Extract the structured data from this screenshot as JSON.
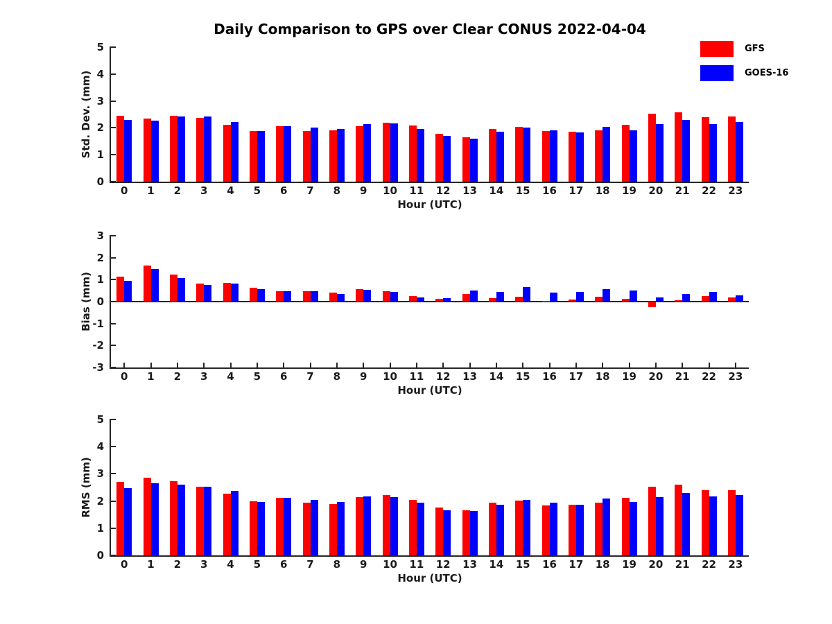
{
  "title": "Daily Comparison to GPS over Clear CONUS 2022-04-04",
  "legend": {
    "items": [
      {
        "label": "GFS",
        "color": "#ff0000"
      },
      {
        "label": "GOES-16",
        "color": "#0000ff"
      }
    ]
  },
  "chart_data": [
    {
      "type": "bar",
      "ylabel": "Std. Dev. (mm)",
      "xlabel": "Hour (UTC)",
      "ylim": [
        0,
        5
      ],
      "yticks": [
        0,
        1,
        2,
        3,
        4,
        5
      ],
      "grid": false,
      "legend_position": "top-right",
      "categories": [
        0,
        1,
        2,
        3,
        4,
        5,
        6,
        7,
        8,
        9,
        10,
        11,
        12,
        13,
        14,
        15,
        16,
        17,
        18,
        19,
        20,
        21,
        22,
        23
      ],
      "series": [
        {
          "name": "GFS",
          "color": "#ff0000",
          "values": [
            2.45,
            2.35,
            2.45,
            2.38,
            2.12,
            1.88,
            2.07,
            1.88,
            1.9,
            2.07,
            2.2,
            2.1,
            1.79,
            1.65,
            1.96,
            2.03,
            1.87,
            1.86,
            1.92,
            2.11,
            2.52,
            2.58,
            2.4,
            2.41
          ]
        },
        {
          "name": "GOES-16",
          "color": "#0000ff",
          "values": [
            2.3,
            2.27,
            2.41,
            2.42,
            2.22,
            1.87,
            2.07,
            2.0,
            1.95,
            2.13,
            2.17,
            1.97,
            1.7,
            1.6,
            1.86,
            2.01,
            1.91,
            1.82,
            2.03,
            1.91,
            2.14,
            2.29,
            2.13,
            2.21
          ]
        }
      ]
    },
    {
      "type": "bar",
      "ylabel": "Bias (mm)",
      "xlabel": "Hour (UTC)",
      "ylim": [
        -3,
        3
      ],
      "yticks": [
        -3,
        -2,
        -1,
        0,
        1,
        2,
        3
      ],
      "grid": false,
      "categories": [
        0,
        1,
        2,
        3,
        4,
        5,
        6,
        7,
        8,
        9,
        10,
        11,
        12,
        13,
        14,
        15,
        16,
        17,
        18,
        19,
        20,
        21,
        22,
        23
      ],
      "series": [
        {
          "name": "GFS",
          "color": "#ff0000",
          "values": [
            1.13,
            1.65,
            1.22,
            0.83,
            0.85,
            0.62,
            0.47,
            0.47,
            0.42,
            0.57,
            0.48,
            0.26,
            0.13,
            0.34,
            0.16,
            0.22,
            0.04,
            0.08,
            0.22,
            0.13,
            -0.24,
            0.06,
            0.25,
            0.18
          ]
        },
        {
          "name": "GOES-16",
          "color": "#0000ff",
          "values": [
            0.96,
            1.48,
            1.07,
            0.75,
            0.83,
            0.57,
            0.46,
            0.46,
            0.35,
            0.53,
            0.43,
            0.2,
            0.17,
            0.52,
            0.45,
            0.65,
            0.42,
            0.43,
            0.58,
            0.49,
            0.18,
            0.35,
            0.43,
            0.28
          ]
        }
      ]
    },
    {
      "type": "bar",
      "ylabel": "RMS (mm)",
      "xlabel": "Hour (UTC)",
      "ylim": [
        0,
        5
      ],
      "yticks": [
        0,
        1,
        2,
        3,
        4,
        5
      ],
      "grid": false,
      "categories": [
        0,
        1,
        2,
        3,
        4,
        5,
        6,
        7,
        8,
        9,
        10,
        11,
        12,
        13,
        14,
        15,
        16,
        17,
        18,
        19,
        20,
        21,
        22,
        23
      ],
      "series": [
        {
          "name": "GFS",
          "color": "#ff0000",
          "values": [
            2.7,
            2.85,
            2.74,
            2.53,
            2.28,
            2.0,
            2.12,
            1.95,
            1.9,
            2.14,
            2.22,
            2.05,
            1.77,
            1.67,
            1.94,
            2.01,
            1.83,
            1.85,
            1.95,
            2.12,
            2.53,
            2.6,
            2.4,
            2.41
          ]
        },
        {
          "name": "GOES-16",
          "color": "#0000ff",
          "values": [
            2.48,
            2.66,
            2.61,
            2.53,
            2.38,
            1.97,
            2.12,
            2.04,
            1.96,
            2.16,
            2.15,
            1.94,
            1.67,
            1.64,
            1.87,
            2.05,
            1.93,
            1.87,
            2.1,
            1.97,
            2.15,
            2.3,
            2.16,
            2.22
          ]
        }
      ]
    }
  ]
}
